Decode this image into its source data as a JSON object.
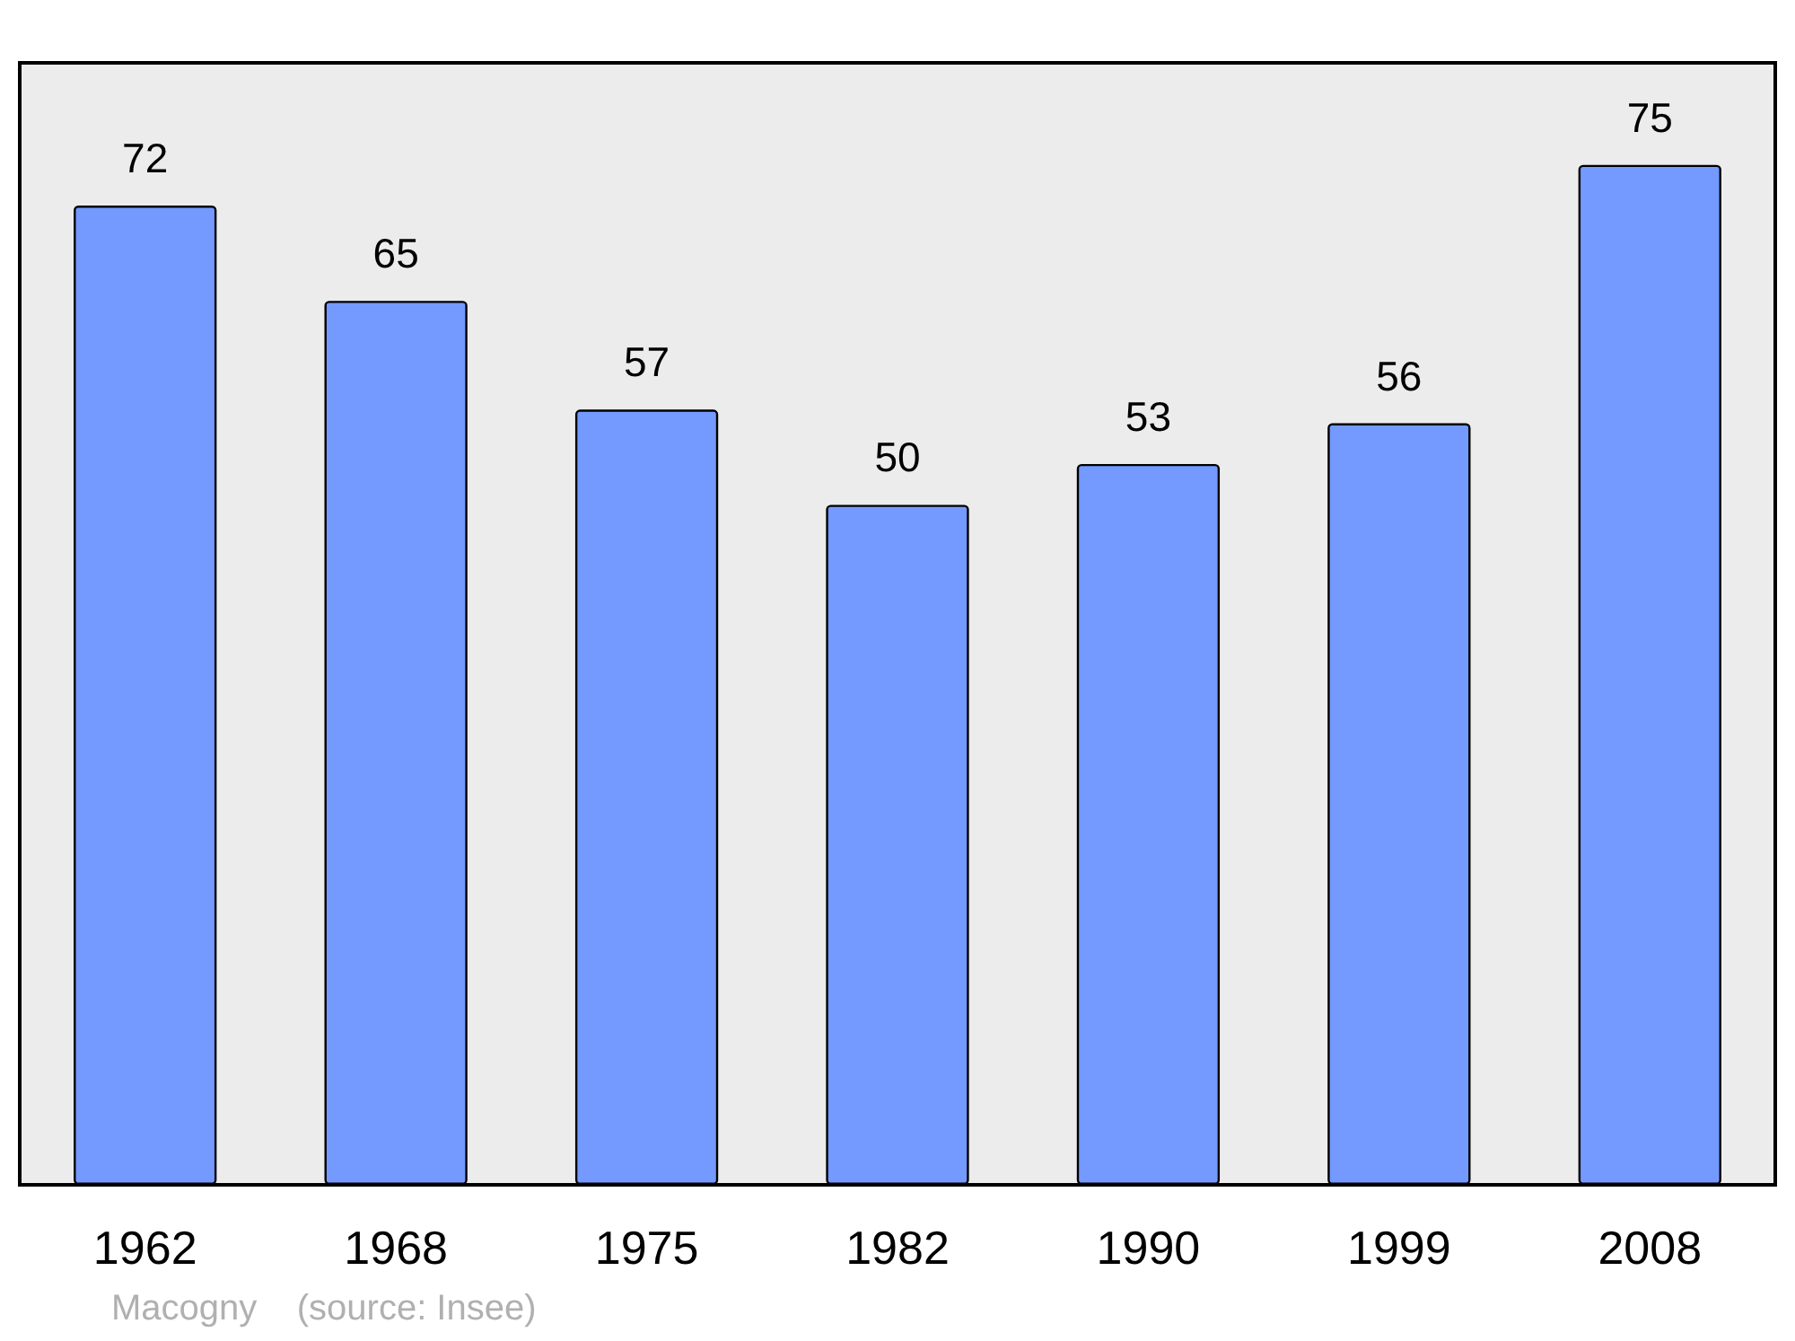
{
  "chart_data": {
    "type": "bar",
    "categories": [
      "1962",
      "1968",
      "1975",
      "1982",
      "1990",
      "1999",
      "2008"
    ],
    "values": [
      72,
      65,
      57,
      50,
      53,
      56,
      75
    ],
    "color": "#7499ff",
    "data_labels": true,
    "annotations": [
      "Macogny    (source: Insee)"
    ]
  }
}
